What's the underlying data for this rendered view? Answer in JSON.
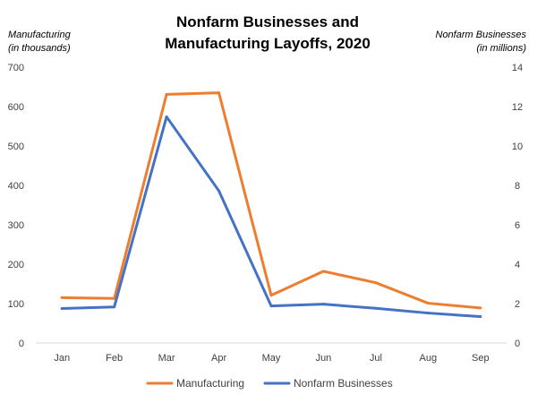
{
  "chart_data": {
    "type": "line",
    "title": "Nonfarm Businesses and Manufacturing Layoffs, 2020",
    "title_lines": [
      "Nonfarm Businesses and",
      "Manufacturing Layoffs, 2020"
    ],
    "left_axis_label": [
      "Manufacturing",
      "(in thousands)"
    ],
    "right_axis_label": [
      "Nonfarm Businesses",
      "(in millions)"
    ],
    "categories": [
      "Jan",
      "Feb",
      "Mar",
      "Apr",
      "May",
      "Jun",
      "Jul",
      "Aug",
      "Sep"
    ],
    "left_ticks": [
      "0",
      "100",
      "200",
      "300",
      "400",
      "500",
      "600",
      "700"
    ],
    "right_ticks": [
      "0",
      "2",
      "4",
      "6",
      "8",
      "10",
      "12",
      "14"
    ],
    "ylim_left": [
      0,
      700
    ],
    "ylim_right": [
      0,
      14
    ],
    "grid": false,
    "legend_position": "bottom",
    "series": [
      {
        "name": "Manufacturing",
        "axis": "left",
        "color": "#ED7D31",
        "values": [
          115,
          113,
          631,
          635,
          121,
          182,
          153,
          101,
          89
        ]
      },
      {
        "name": "Nonfarm Businesses",
        "axis": "right",
        "color": "#4472C4",
        "values": [
          1.75,
          1.83,
          11.48,
          7.72,
          1.88,
          1.97,
          1.76,
          1.52,
          1.34
        ]
      }
    ]
  }
}
